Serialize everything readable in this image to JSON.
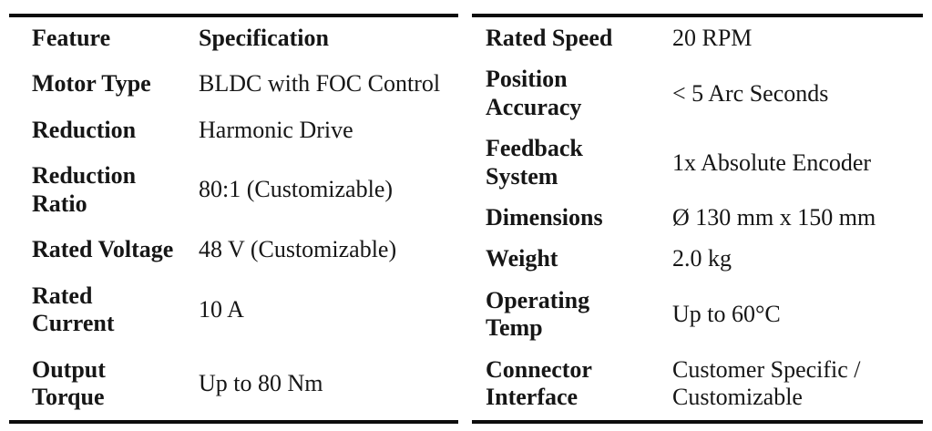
{
  "page": {
    "background": "#ffffff",
    "text_color": "#161616",
    "rule_color": "#0d0d0d"
  },
  "left_table": {
    "header": {
      "feature_label": "Feature",
      "spec_label": "Specification"
    },
    "rows": [
      {
        "feature": "Motor Type",
        "value": "BLDC with FOC Control"
      },
      {
        "feature": "Reduction",
        "value": "Harmonic Drive"
      },
      {
        "feature": "Reduction Ratio",
        "value": "80:1 (Customizable)"
      },
      {
        "feature": "Rated Voltage",
        "value": "48 V (Customizable)"
      },
      {
        "feature": "Rated Current",
        "value": "10 A"
      },
      {
        "feature": "Output Torque",
        "value": "Up to 80 Nm"
      }
    ]
  },
  "right_table": {
    "rows": [
      {
        "feature": "Rated Speed",
        "value": "20 RPM"
      },
      {
        "feature": "Position Accuracy",
        "value": "< 5 Arc Seconds"
      },
      {
        "feature": "Feedback System",
        "value": "1x Absolute Encoder"
      },
      {
        "feature": "Dimensions",
        "value": "Ø 130 mm x 150 mm"
      },
      {
        "feature": "Weight",
        "value": "2.0 kg"
      },
      {
        "feature": "Operating Temp",
        "value": "Up to 60°C"
      },
      {
        "feature": "Connector Interface",
        "value": "Customer Specific / Customizable"
      }
    ]
  }
}
